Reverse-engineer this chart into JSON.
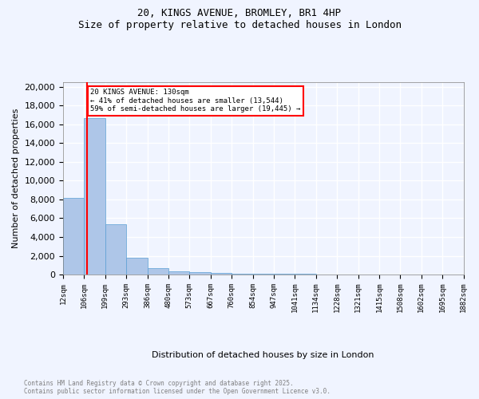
{
  "title_line1": "20, KINGS AVENUE, BROMLEY, BR1 4HP",
  "title_line2": "Size of property relative to detached houses in London",
  "xlabel": "Distribution of detached houses by size in London",
  "ylabel": "Number of detached properties",
  "bar_values": [
    8200,
    16700,
    5350,
    1800,
    650,
    330,
    220,
    170,
    100,
    80,
    60,
    50,
    40,
    35,
    30,
    25,
    20,
    18,
    15
  ],
  "bar_labels": [
    "12sqm",
    "106sqm",
    "199sqm",
    "293sqm",
    "386sqm",
    "480sqm",
    "573sqm",
    "667sqm",
    "760sqm",
    "854sqm",
    "947sqm",
    "1041sqm",
    "1134sqm",
    "1228sqm",
    "1321sqm",
    "1415sqm",
    "1508sqm",
    "1602sqm",
    "1695sqm",
    "1882sqm"
  ],
  "bar_color": "#aec6e8",
  "bar_edge_color": "#5a9fd4",
  "background_color": "#f0f4ff",
  "grid_color": "#ffffff",
  "annotation_text": "20 KINGS AVENUE: 130sqm\n← 41% of detached houses are smaller (13,544)\n59% of semi-detached houses are larger (19,445) →",
  "red_line_x": 1.15,
  "ylim": [
    0,
    20500
  ],
  "yticks": [
    0,
    2000,
    4000,
    6000,
    8000,
    10000,
    12000,
    14000,
    16000,
    18000,
    20000
  ],
  "footer_line1": "Contains HM Land Registry data © Crown copyright and database right 2025.",
  "footer_line2": "Contains public sector information licensed under the Open Government Licence v3.0."
}
